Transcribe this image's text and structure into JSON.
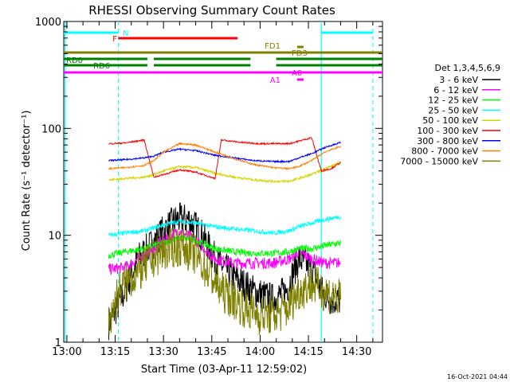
{
  "chart_data": {
    "type": "line",
    "title": "RHESSI Observing Summary Count Rates",
    "xlabel": "Start Time (03-Apr-11 12:59:02)",
    "ylabel": "Count Rate (s⁻¹ detector⁻¹)",
    "yscale": "log",
    "ylim": [
      1,
      1000
    ],
    "xlim": [
      "12:59:02",
      "14:38:00"
    ],
    "x_ticks": [
      "13:00",
      "13:15",
      "13:30",
      "13:45",
      "14:00",
      "14:15",
      "14:30"
    ],
    "y_ticks": [
      "1",
      "10",
      "100",
      "1000"
    ],
    "timestamp": "16-Oct-2021 04:44",
    "legend": {
      "title": "Det 1,3,4,5,6,9",
      "placement": "right",
      "entries": [
        {
          "label": "3 - 6 keV",
          "color": "#000000"
        },
        {
          "label": "6 - 12 keV",
          "color": "#ff00ff"
        },
        {
          "label": "12 - 25 keV",
          "color": "#00ff00"
        },
        {
          "label": "25 - 50 keV",
          "color": "#00ffff"
        },
        {
          "label": "50 - 100 keV",
          "color": "#d4d400"
        },
        {
          "label": "100 - 300 keV",
          "color": "#ff0000"
        },
        {
          "label": "300 - 800 keV",
          "color": "#0000ff"
        },
        {
          "label": "800 - 7000 keV",
          "color": "#ff8000"
        },
        {
          "label": "7000 - 15000 keV",
          "color": "#808000"
        }
      ]
    },
    "data_gaps": [
      [
        "12:59:02",
        "13:12:30"
      ],
      [
        "14:25:00",
        "14:38:00"
      ]
    ],
    "night_lines": [
      {
        "time": "12:59:30",
        "style": "solid"
      },
      {
        "time": "14:19:00",
        "style": "solid"
      }
    ],
    "saa_lines": [
      {
        "time": "13:16:00",
        "style": "dashed"
      },
      {
        "time": "14:35:00",
        "style": "dashed"
      }
    ],
    "flag_bars": [
      {
        "label": "N",
        "color": "#00ffff",
        "segments": [
          [
            "12:59:02",
            "13:16:00"
          ],
          [
            "14:19:00",
            "14:35:00"
          ]
        ]
      },
      {
        "label": "F",
        "color": "#ff0000",
        "segments": [
          [
            "13:16:00",
            "13:53:00"
          ]
        ]
      },
      {
        "label": "FD1",
        "color": "#808000",
        "segments": [
          [
            "14:11:30",
            "14:13:30"
          ]
        ]
      },
      {
        "label": "FD3",
        "color": "#808000",
        "segments": [
          [
            "12:59:02",
            "14:38:00"
          ]
        ]
      },
      {
        "label": "RD0",
        "color": "#008000",
        "segments": [
          [
            "12:59:02",
            "13:25:00"
          ],
          [
            "13:27:00",
            "13:57:00"
          ],
          [
            "14:05:00",
            "14:38:00"
          ]
        ]
      },
      {
        "label": "RD6",
        "color": "#008000",
        "segments": [
          [
            "12:59:02",
            "13:25:00"
          ],
          [
            "13:27:00",
            "13:57:00"
          ],
          [
            "14:05:00",
            "14:38:00"
          ]
        ]
      },
      {
        "label": "A0",
        "color": "#ff00ff",
        "segments": [
          [
            "12:59:02",
            "14:38:00"
          ]
        ]
      },
      {
        "label": "A1",
        "color": "#ff00ff",
        "segments": [
          [
            "14:11:30",
            "14:13:30"
          ]
        ]
      }
    ],
    "series": [
      {
        "name": "3 - 6 keV",
        "color": "#000000",
        "points": [
          [
            "13:13:00",
            1.5
          ],
          [
            "13:18:00",
            3
          ],
          [
            "13:22:00",
            6
          ],
          [
            "13:26:00",
            8
          ],
          [
            "13:30:00",
            11
          ],
          [
            "13:34:00",
            14
          ],
          [
            "13:38:00",
            14
          ],
          [
            "13:42:00",
            10
          ],
          [
            "13:46:00",
            6
          ],
          [
            "13:52:00",
            4
          ],
          [
            "13:58:00",
            3
          ],
          [
            "14:04:00",
            2.5
          ],
          [
            "14:08:00",
            3
          ],
          [
            "14:12:00",
            6
          ],
          [
            "14:16:00",
            5
          ],
          [
            "14:19:00",
            3
          ],
          [
            "14:22:00",
            2.5
          ],
          [
            "14:25:00",
            2.5
          ]
        ]
      },
      {
        "name": "6 - 12 keV",
        "color": "#ff00ff",
        "points": [
          [
            "13:13:00",
            4.8
          ],
          [
            "13:18:00",
            5
          ],
          [
            "13:24:00",
            6.5
          ],
          [
            "13:30:00",
            9
          ],
          [
            "13:35:00",
            11
          ],
          [
            "13:40:00",
            9
          ],
          [
            "13:46:00",
            6
          ],
          [
            "13:52:00",
            5.5
          ],
          [
            "13:58:00",
            5.5
          ],
          [
            "14:04:00",
            5.5
          ],
          [
            "14:09:00",
            6
          ],
          [
            "14:12:00",
            7
          ],
          [
            "14:16:00",
            6
          ],
          [
            "14:20:00",
            5.5
          ],
          [
            "14:25:00",
            5.5
          ]
        ]
      },
      {
        "name": "12 - 25 keV",
        "color": "#00ff00",
        "points": [
          [
            "13:13:00",
            6.5
          ],
          [
            "13:18:00",
            7
          ],
          [
            "13:24:00",
            7.5
          ],
          [
            "13:30:00",
            8.5
          ],
          [
            "13:35:00",
            9.5
          ],
          [
            "13:40:00",
            9
          ],
          [
            "13:46:00",
            7.5
          ],
          [
            "13:52:00",
            7
          ],
          [
            "13:58:00",
            6.8
          ],
          [
            "14:04:00",
            6.8
          ],
          [
            "14:09:00",
            7
          ],
          [
            "14:12:00",
            7.5
          ],
          [
            "14:16:00",
            7.5
          ],
          [
            "14:20:00",
            8
          ],
          [
            "14:25:00",
            8.5
          ]
        ]
      },
      {
        "name": "25 - 50 keV",
        "color": "#00ffff",
        "points": [
          [
            "13:13:00",
            10
          ],
          [
            "13:18:00",
            10.5
          ],
          [
            "13:24:00",
            11
          ],
          [
            "13:30:00",
            12.5
          ],
          [
            "13:35:00",
            13.5
          ],
          [
            "13:40:00",
            13
          ],
          [
            "13:46:00",
            12
          ],
          [
            "13:52:00",
            11.5
          ],
          [
            "13:58:00",
            11
          ],
          [
            "14:04:00",
            10.5
          ],
          [
            "14:09:00",
            11
          ],
          [
            "14:12:00",
            12
          ],
          [
            "14:16:00",
            13
          ],
          [
            "14:20:00",
            14
          ],
          [
            "14:25:00",
            15
          ]
        ]
      },
      {
        "name": "50 - 100 keV",
        "color": "#d4d400",
        "points": [
          [
            "13:13:00",
            33
          ],
          [
            "13:18:00",
            34
          ],
          [
            "13:24:00",
            35
          ],
          [
            "13:27:00",
            37
          ],
          [
            "13:30:00",
            40
          ],
          [
            "13:35:00",
            44
          ],
          [
            "13:40:00",
            43
          ],
          [
            "13:46:00",
            38
          ],
          [
            "13:52:00",
            35
          ],
          [
            "13:58:00",
            33
          ],
          [
            "14:04:00",
            32
          ],
          [
            "14:09:00",
            32
          ],
          [
            "14:12:00",
            34
          ],
          [
            "14:16:00",
            37
          ],
          [
            "14:20:00",
            42
          ],
          [
            "14:25:00",
            48
          ]
        ]
      },
      {
        "name": "100 - 300 keV",
        "color": "#ff0000",
        "points": [
          [
            "13:13:00",
            72
          ],
          [
            "13:18:00",
            73
          ],
          [
            "13:24:00",
            78
          ],
          [
            "13:27:00",
            35
          ],
          [
            "13:30:00",
            37
          ],
          [
            "13:35:00",
            41
          ],
          [
            "13:40:00",
            39
          ],
          [
            "13:46:00",
            34
          ],
          [
            "13:48:00",
            78
          ],
          [
            "13:54:00",
            74
          ],
          [
            "14:00:00",
            72
          ],
          [
            "14:06:00",
            72
          ],
          [
            "14:09:00",
            72
          ],
          [
            "14:12:00",
            76
          ],
          [
            "14:16:00",
            82
          ],
          [
            "14:19:00",
            40
          ],
          [
            "14:22:00",
            42
          ],
          [
            "14:25:00",
            48
          ]
        ]
      },
      {
        "name": "300 - 800 keV",
        "color": "#0000ff",
        "points": [
          [
            "13:13:00",
            50
          ],
          [
            "13:18:00",
            51
          ],
          [
            "13:24:00",
            53
          ],
          [
            "13:27:00",
            55
          ],
          [
            "13:30:00",
            60
          ],
          [
            "13:35:00",
            64
          ],
          [
            "13:40:00",
            62
          ],
          [
            "13:46:00",
            56
          ],
          [
            "13:52:00",
            53
          ],
          [
            "13:58:00",
            50
          ],
          [
            "14:04:00",
            49
          ],
          [
            "14:09:00",
            49
          ],
          [
            "14:12:00",
            53
          ],
          [
            "14:16:00",
            58
          ],
          [
            "14:20:00",
            66
          ],
          [
            "14:25:00",
            74
          ]
        ]
      },
      {
        "name": "800 - 7000 keV",
        "color": "#ff8000",
        "points": [
          [
            "13:13:00",
            42
          ],
          [
            "13:18:00",
            43
          ],
          [
            "13:24:00",
            45
          ],
          [
            "13:27:00",
            50
          ],
          [
            "13:30:00",
            60
          ],
          [
            "13:35:00",
            72
          ],
          [
            "13:40:00",
            70
          ],
          [
            "13:46:00",
            60
          ],
          [
            "13:52:00",
            52
          ],
          [
            "13:58:00",
            46
          ],
          [
            "14:04:00",
            43
          ],
          [
            "14:09:00",
            42
          ],
          [
            "14:12:00",
            44
          ],
          [
            "14:16:00",
            50
          ],
          [
            "14:20:00",
            60
          ],
          [
            "14:25:00",
            68
          ]
        ]
      },
      {
        "name": "7000 - 15000 keV",
        "color": "#808000",
        "points": [
          [
            "13:13:00",
            1.5
          ],
          [
            "13:16:00",
            3
          ],
          [
            "13:20:00",
            4
          ],
          [
            "13:24:00",
            5
          ],
          [
            "13:28:00",
            6.5
          ],
          [
            "13:32:00",
            7.5
          ],
          [
            "13:36:00",
            8
          ],
          [
            "13:40:00",
            6.5
          ],
          [
            "13:44:00",
            4.5
          ],
          [
            "13:48:00",
            3
          ],
          [
            "13:52:00",
            2.5
          ],
          [
            "13:56:00",
            2
          ],
          [
            "14:00:00",
            1.8
          ],
          [
            "14:04:00",
            1.8
          ],
          [
            "14:08:00",
            2
          ],
          [
            "14:12:00",
            3
          ],
          [
            "14:16:00",
            3.5
          ],
          [
            "14:20:00",
            3
          ],
          [
            "14:25:00",
            2.5
          ]
        ]
      }
    ]
  }
}
